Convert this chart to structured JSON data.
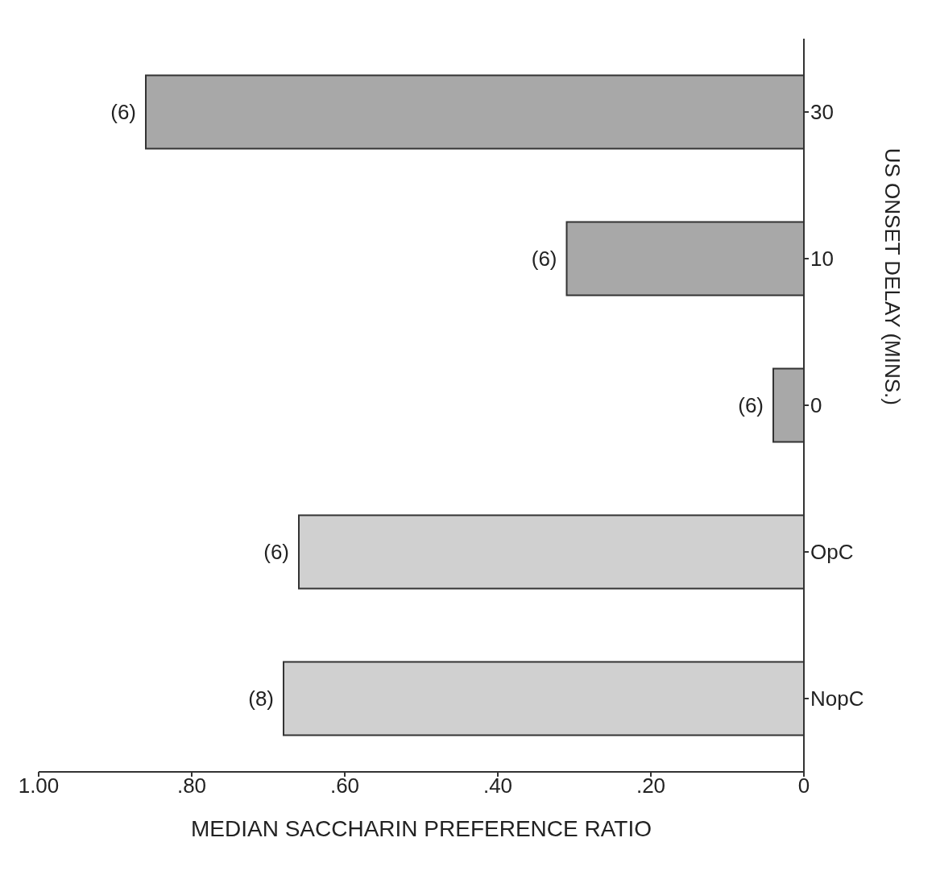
{
  "chart_data": {
    "type": "bar",
    "orientation": "horizontal",
    "xlabel": "MEDIAN SACCHARIN PREFERENCE RATIO",
    "ylabel": "US ONSET DELAY (MINS.)",
    "categories": [
      "30",
      "10",
      "0",
      "OpC",
      "NopC"
    ],
    "values": [
      0.86,
      0.31,
      0.04,
      0.66,
      0.68
    ],
    "colors": [
      "#a8a8a8",
      "#a8a8a8",
      "#a8a8a8",
      "#d0d0d0",
      "#d0d0d0"
    ],
    "xlim": [
      1.0,
      0
    ],
    "xticks": [
      {
        "value": 1.0,
        "label": "1.00"
      },
      {
        "value": 0.8,
        "label": ".80"
      },
      {
        "value": 0.6,
        "label": ".60"
      },
      {
        "value": 0.4,
        "label": ".40"
      },
      {
        "value": 0.2,
        "label": ".20"
      },
      0
    ],
    "annotations": [
      {
        "text": "(6)",
        "x": 0.86,
        "y": "30"
      },
      {
        "text": "(6)",
        "x": 0.31,
        "y": "10"
      },
      {
        "text": "(6)",
        "x": 0.04,
        "y": "0"
      },
      {
        "text": "(6)",
        "x": 0.66,
        "y": "OpC"
      },
      {
        "text": "(8)",
        "x": 0.68,
        "y": "NopC"
      }
    ]
  }
}
